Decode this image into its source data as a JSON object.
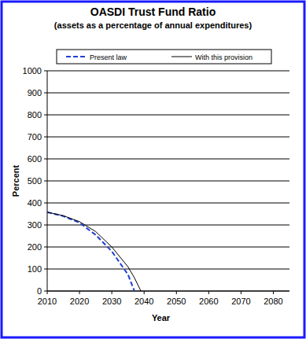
{
  "chart_data": {
    "type": "line",
    "title": "OASDI Trust Fund Ratio",
    "subtitle": "(assets as a percentage of annual expenditures)",
    "x_label": "Year",
    "y_label": "Percent",
    "x": [
      2010,
      2015,
      2020,
      2025,
      2030,
      2035,
      2037,
      2039
    ],
    "series": [
      {
        "name": "Present law",
        "color": "#1f3fd6",
        "line_style": "dashed",
        "values": [
          358,
          340,
          310,
          255,
          180,
          75,
          0,
          null
        ]
      },
      {
        "name": "With this provision",
        "color": "#000000",
        "line_style": "solid",
        "values": [
          358,
          342,
          315,
          270,
          200,
          110,
          60,
          0
        ]
      }
    ],
    "xlim": [
      2010,
      2085
    ],
    "xticks": [
      2010,
      2020,
      2030,
      2040,
      2050,
      2060,
      2070,
      2080
    ],
    "ylim": [
      0,
      1000
    ],
    "yticks": [
      0,
      100,
      200,
      300,
      400,
      500,
      600,
      700,
      800,
      900,
      1000
    ],
    "grid": true,
    "legend": "top"
  }
}
